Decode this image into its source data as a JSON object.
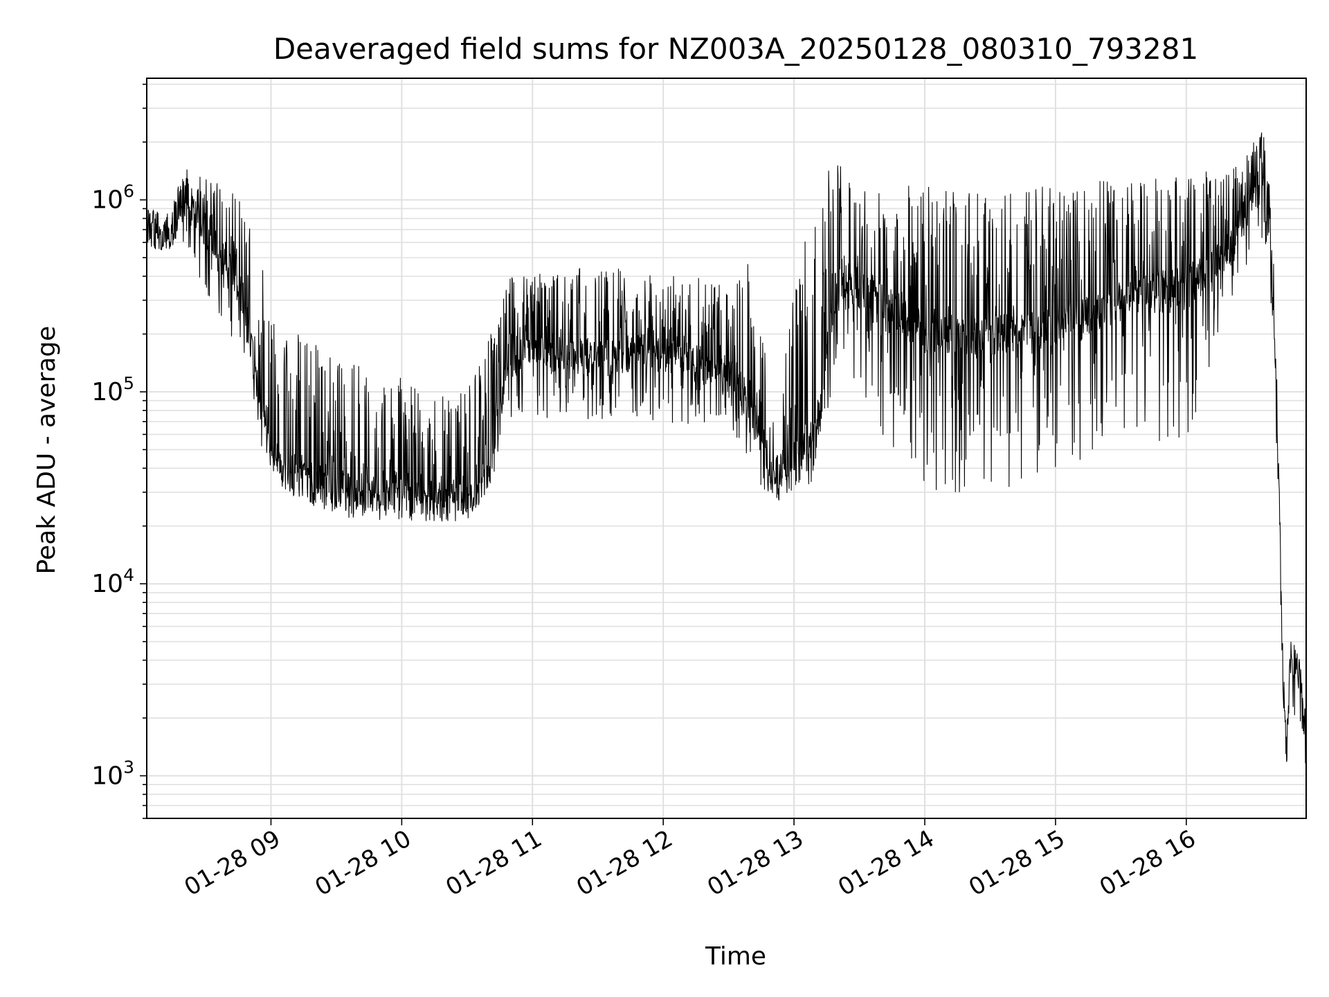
{
  "chart_data": {
    "type": "line",
    "title": "Deaveraged field sums for NZ003A_20250128_080310_793281",
    "xlabel": "Time",
    "ylabel": "Peak ADU - average",
    "yscale": "log",
    "ylim": [
      600,
      4300000
    ],
    "xlim": [
      "2025-01-28 08:03",
      "2025-01-28 16:55"
    ],
    "grid": true,
    "line_color": "#000000",
    "grid_color": "#e0e0e0",
    "y_ticks": [
      {
        "value": 1000,
        "base": "10",
        "exp": "3"
      },
      {
        "value": 10000,
        "base": "10",
        "exp": "4"
      },
      {
        "value": 100000,
        "base": "10",
        "exp": "5"
      },
      {
        "value": 1000000,
        "base": "10",
        "exp": "6"
      }
    ],
    "x_ticks": [
      {
        "time": "2025-01-28 09:00",
        "label": "01-28 09"
      },
      {
        "time": "2025-01-28 10:00",
        "label": "01-28 10"
      },
      {
        "time": "2025-01-28 11:00",
        "label": "01-28 11"
      },
      {
        "time": "2025-01-28 12:00",
        "label": "01-28 12"
      },
      {
        "time": "2025-01-28 13:00",
        "label": "01-28 13"
      },
      {
        "time": "2025-01-28 14:00",
        "label": "01-28 14"
      },
      {
        "time": "2025-01-28 15:00",
        "label": "01-28 15"
      },
      {
        "time": "2025-01-28 16:00",
        "label": "01-28 16"
      }
    ],
    "series": [
      {
        "envelope": [
          {
            "time": "2025-01-28 08:03",
            "base": 700000,
            "low": 550000,
            "high": 900000
          },
          {
            "time": "2025-01-28 08:14",
            "base": 700000,
            "low": 550000,
            "high": 850000
          },
          {
            "time": "2025-01-28 08:20",
            "base": 1000000,
            "low": 600000,
            "high": 1500000
          },
          {
            "time": "2025-01-28 08:30",
            "base": 700000,
            "low": 300000,
            "high": 1300000
          },
          {
            "time": "2025-01-28 08:45",
            "base": 400000,
            "low": 150000,
            "high": 1100000
          },
          {
            "time": "2025-01-28 08:55",
            "base": 90000,
            "low": 50000,
            "high": 500000
          },
          {
            "time": "2025-01-28 09:05",
            "base": 40000,
            "low": 30000,
            "high": 250000
          },
          {
            "time": "2025-01-28 09:30",
            "base": 32000,
            "low": 22000,
            "high": 150000
          },
          {
            "time": "2025-01-28 10:00",
            "base": 30000,
            "low": 21000,
            "high": 120000
          },
          {
            "time": "2025-01-28 10:30",
            "base": 28000,
            "low": 21000,
            "high": 100000
          },
          {
            "time": "2025-01-28 10:40",
            "base": 40000,
            "low": 30000,
            "high": 200000
          },
          {
            "time": "2025-01-28 10:50",
            "base": 170000,
            "low": 70000,
            "high": 400000
          },
          {
            "time": "2025-01-28 11:30",
            "base": 150000,
            "low": 70000,
            "high": 450000
          },
          {
            "time": "2025-01-28 12:00",
            "base": 170000,
            "low": 70000,
            "high": 420000
          },
          {
            "time": "2025-01-28 12:30",
            "base": 120000,
            "low": 60000,
            "high": 380000
          },
          {
            "time": "2025-01-28 12:40",
            "base": 90000,
            "low": 40000,
            "high": 500000
          },
          {
            "time": "2025-01-28 12:50",
            "base": 35000,
            "low": 26000,
            "high": 100000
          },
          {
            "time": "2025-01-28 13:10",
            "base": 60000,
            "low": 30000,
            "high": 1300000
          },
          {
            "time": "2025-01-28 13:20",
            "base": 400000,
            "low": 150000,
            "high": 1600000
          },
          {
            "time": "2025-01-28 13:40",
            "base": 300000,
            "low": 60000,
            "high": 1300000
          },
          {
            "time": "2025-01-28 14:00",
            "base": 200000,
            "low": 30000,
            "high": 1200000
          },
          {
            "time": "2025-01-28 14:30",
            "base": 200000,
            "low": 30000,
            "high": 1100000
          },
          {
            "time": "2025-01-28 15:00",
            "base": 220000,
            "low": 35000,
            "high": 1200000
          },
          {
            "time": "2025-01-28 15:30",
            "base": 300000,
            "low": 60000,
            "high": 1300000
          },
          {
            "time": "2025-01-28 16:00",
            "base": 350000,
            "low": 50000,
            "high": 1400000
          },
          {
            "time": "2025-01-28 16:20",
            "base": 550000,
            "low": 300000,
            "high": 1500000
          },
          {
            "time": "2025-01-28 16:35",
            "base": 1500000,
            "low": 600000,
            "high": 2500000
          },
          {
            "time": "2025-01-28 16:38",
            "base": 700000,
            "low": 300000,
            "high": 1500000
          },
          {
            "time": "2025-01-28 16:40",
            "base": 300000,
            "low": 150000,
            "high": 500000
          },
          {
            "time": "2025-01-28 16:42",
            "base": 50000,
            "low": 30000,
            "high": 80000
          },
          {
            "time": "2025-01-28 16:44",
            "base": 4500,
            "low": 3000,
            "high": 6000
          },
          {
            "time": "2025-01-28 16:46",
            "base": 1200,
            "low": 900,
            "high": 2000
          },
          {
            "time": "2025-01-28 16:48",
            "base": 4000,
            "low": 2000,
            "high": 5500
          },
          {
            "time": "2025-01-28 16:52",
            "base": 3500,
            "low": 2000,
            "high": 4200
          },
          {
            "time": "2025-01-28 16:55",
            "base": 1200,
            "low": 1000,
            "high": 2000
          }
        ]
      }
    ]
  }
}
